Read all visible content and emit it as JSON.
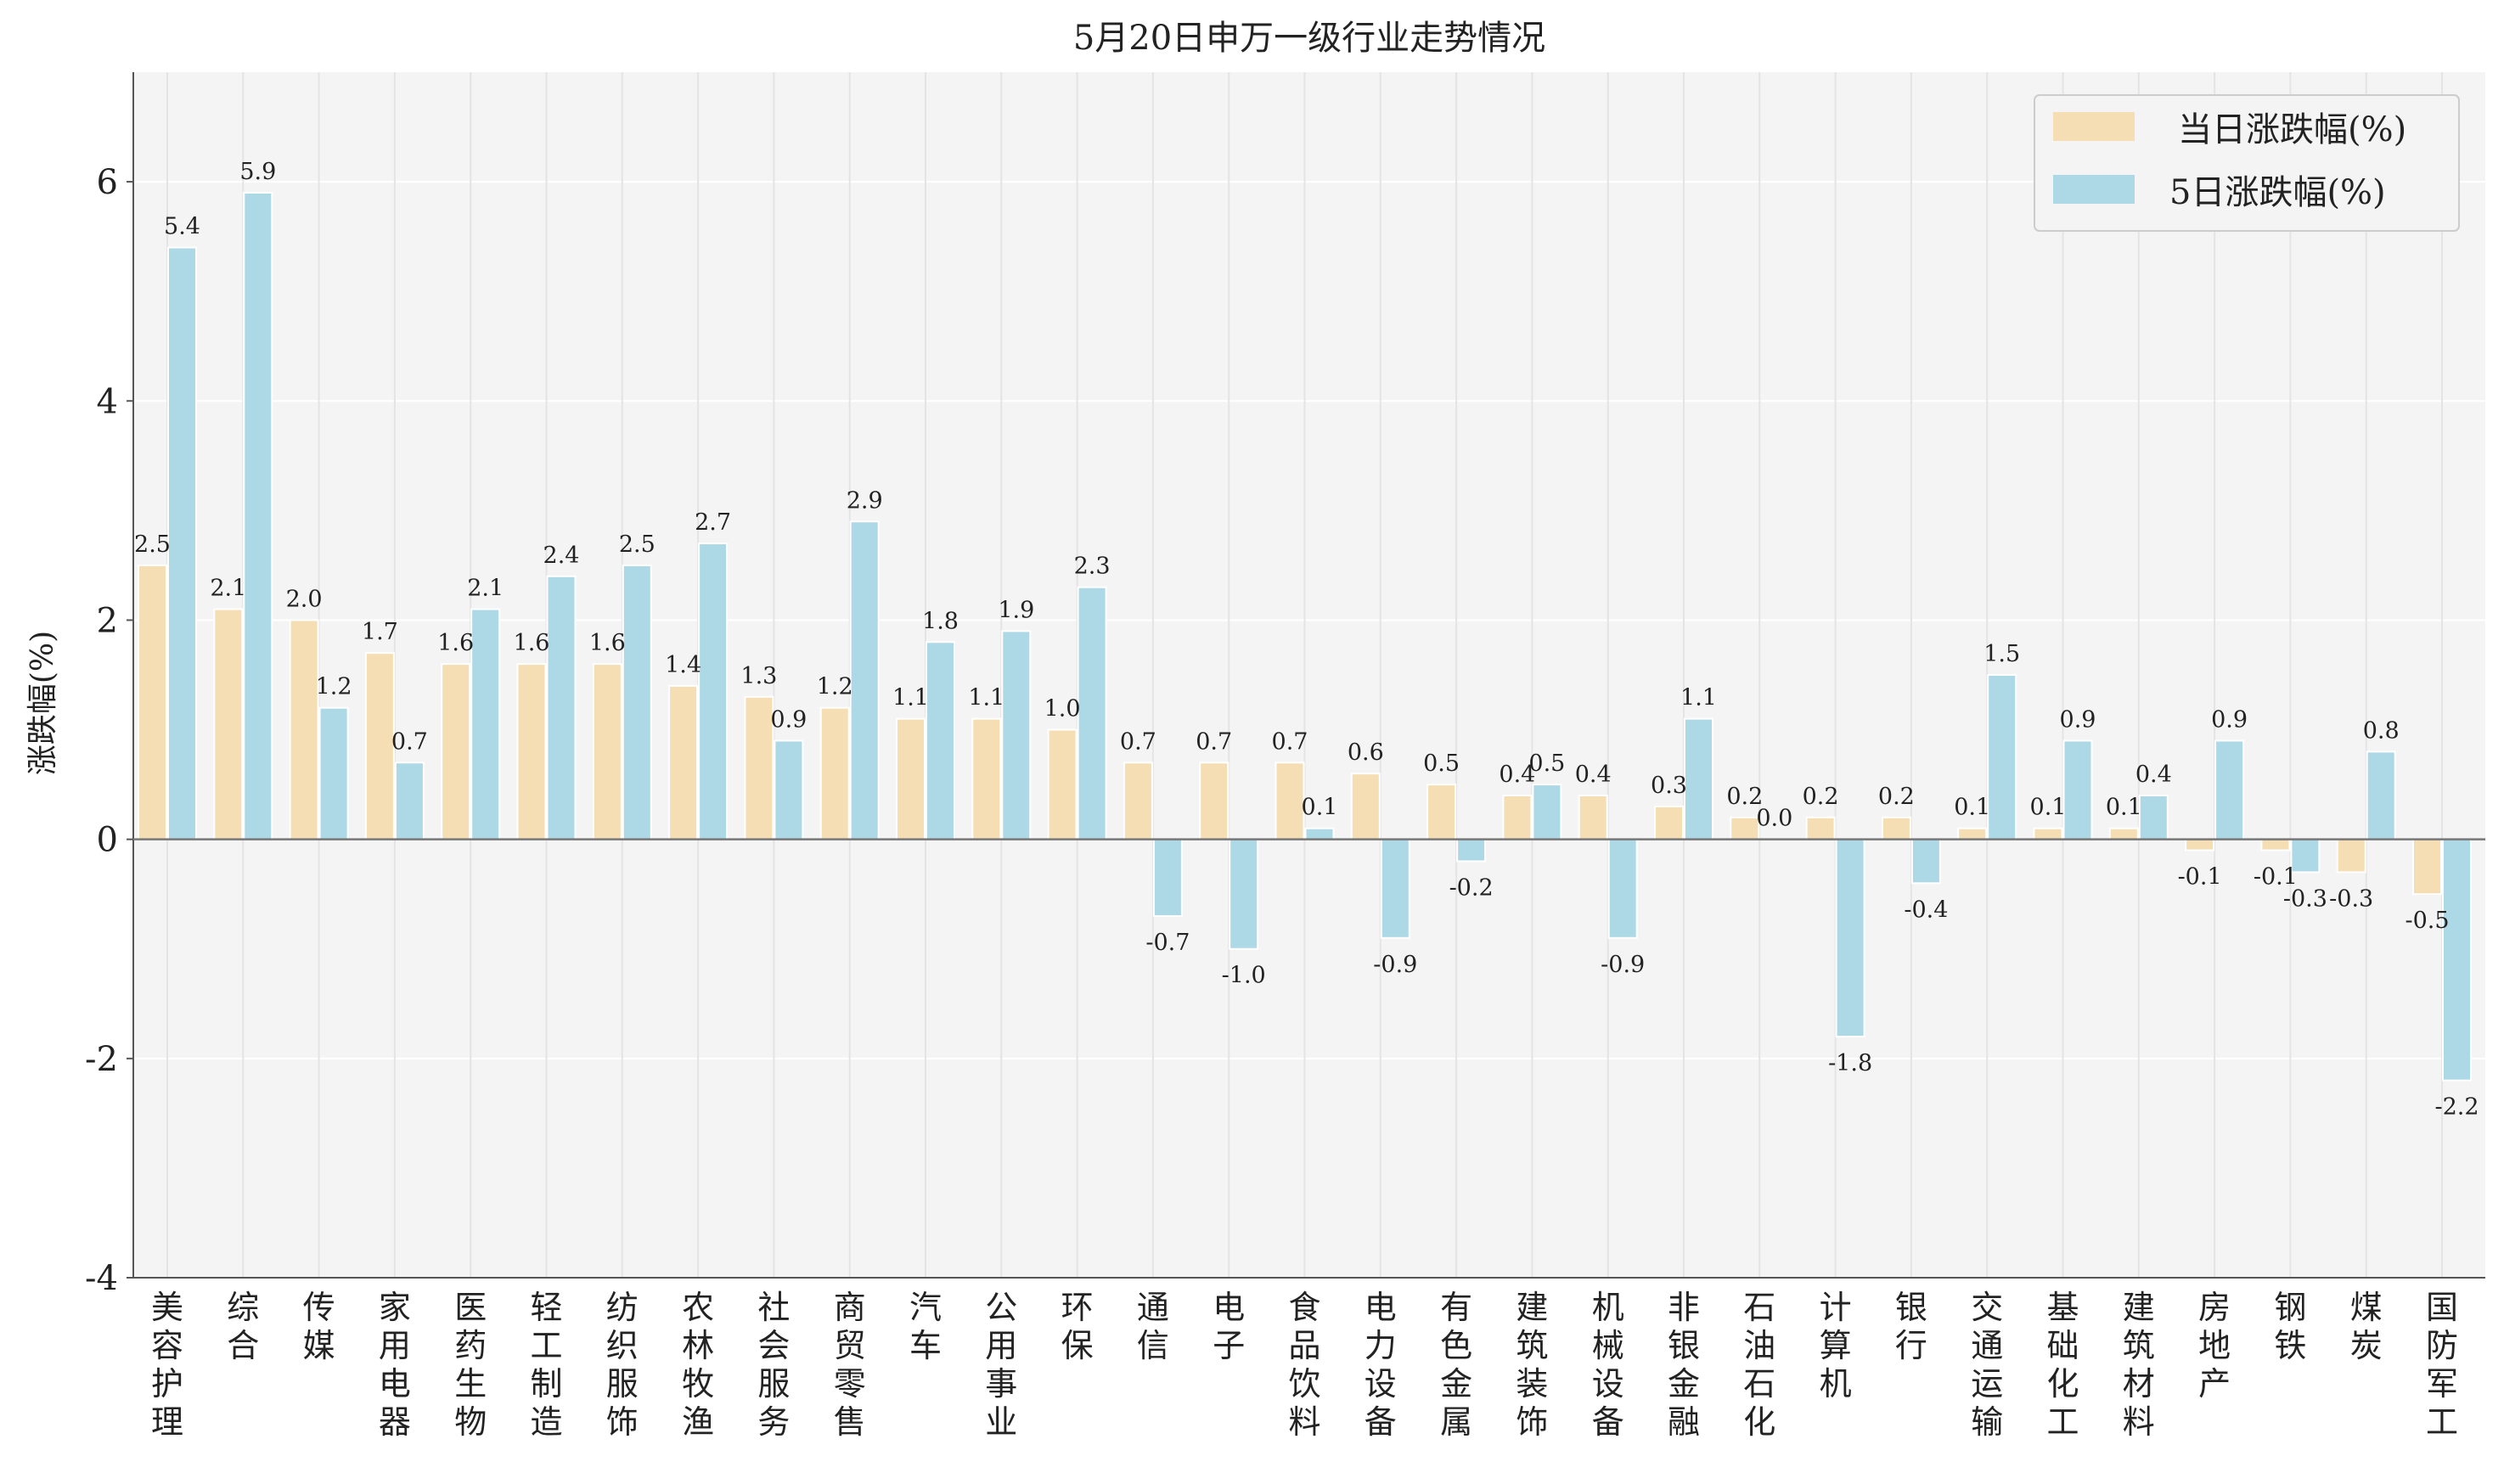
{
  "chart_data": {
    "type": "bar",
    "title": "5月20日申万一级行业走势情况",
    "xlabel": "",
    "ylabel": "涨跌幅(%)",
    "ylim": [
      -4,
      7
    ],
    "yticks": [
      -4,
      -2,
      0,
      2,
      4,
      6
    ],
    "ytick_labels": [
      "-4",
      "-2",
      "0",
      "2",
      "4",
      "6"
    ],
    "grid": true,
    "legend_position": "top-right",
    "categories": [
      "美容护理",
      "综合",
      "传媒",
      "家用电器",
      "医药生物",
      "轻工制造",
      "纺织服饰",
      "农林牧渔",
      "社会服务",
      "商贸零售",
      "汽车",
      "公用事业",
      "环保",
      "通信",
      "电子",
      "食品饮料",
      "电力设备",
      "有色金属",
      "建筑装饰",
      "机械设备",
      "非银金融",
      "石油石化",
      "计算机",
      "银行",
      "交通运输",
      "基础化工",
      "建筑材料",
      "房地产",
      "钢铁",
      "煤炭",
      "国防军工"
    ],
    "series": [
      {
        "name": "当日涨跌幅(%)",
        "color": "#f5deb3",
        "values": [
          2.5,
          2.1,
          2.0,
          1.7,
          1.6,
          1.6,
          1.6,
          1.4,
          1.3,
          1.2,
          1.1,
          1.1,
          1.0,
          0.7,
          0.7,
          0.7,
          0.6,
          0.5,
          0.4,
          0.4,
          0.3,
          0.2,
          0.2,
          0.2,
          0.1,
          0.1,
          0.1,
          -0.1,
          -0.1,
          -0.3,
          -0.5
        ],
        "labels": [
          "2.5",
          "2.1",
          "2.0",
          "1.7",
          "1.6",
          "1.6",
          "1.6",
          "1.4",
          "1.3",
          "1.2",
          "1.1",
          "1.1",
          "1.0",
          "0.7",
          "0.7",
          "0.7",
          "0.6",
          "0.5",
          "0.4",
          "0.4",
          "0.3",
          "0.2",
          "0.2",
          "0.2",
          "0.1",
          "0.1",
          "0.1",
          "-0.1",
          "-0.1",
          "-0.3",
          "-0.5"
        ]
      },
      {
        "name": "5日涨跌幅(%)",
        "color": "#add8e6",
        "values": [
          5.4,
          5.9,
          1.2,
          0.7,
          2.1,
          2.4,
          2.5,
          2.7,
          0.9,
          2.9,
          1.8,
          1.9,
          2.3,
          -0.7,
          -1.0,
          0.1,
          -0.9,
          -0.2,
          0.5,
          -0.9,
          1.1,
          0.0,
          -1.8,
          -0.4,
          1.5,
          0.9,
          0.4,
          0.9,
          -0.3,
          0.8,
          -2.2
        ],
        "labels": [
          "5.4",
          "5.9",
          "1.2",
          "0.7",
          "2.1",
          "2.4",
          "2.5",
          "2.7",
          "0.9",
          "2.9",
          "1.8",
          "1.9",
          "2.3",
          "-0.7",
          "-1.0",
          "0.1",
          "-0.9",
          "-0.2",
          "0.5",
          "-0.9",
          "1.1",
          "0.0",
          "-1.8",
          "-0.4",
          "1.5",
          "0.9",
          "0.4",
          "0.9",
          "-0.3",
          "0.8",
          "-2.2"
        ]
      }
    ]
  }
}
